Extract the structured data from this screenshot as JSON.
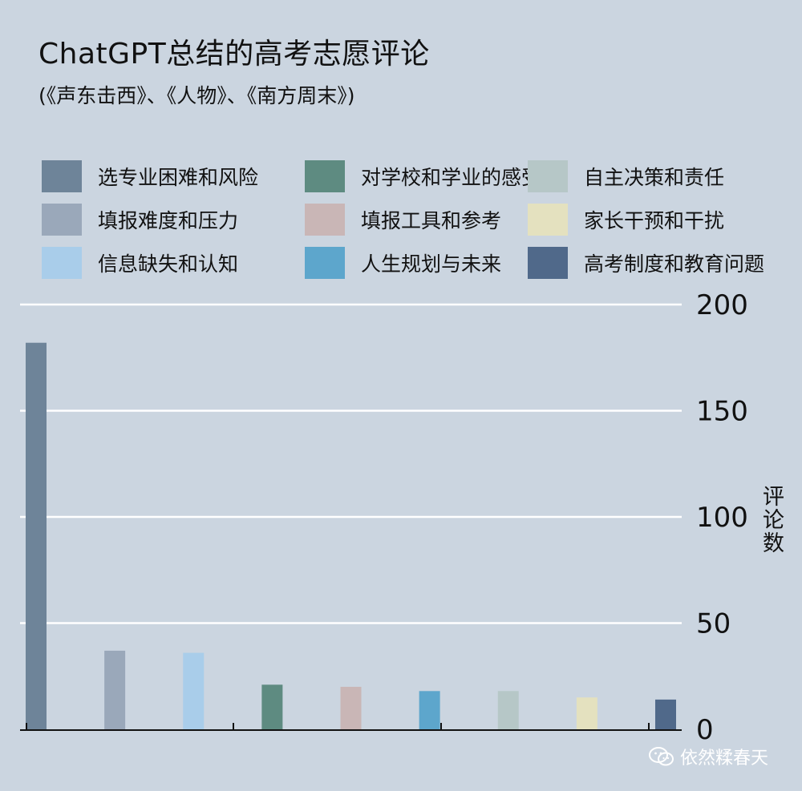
{
  "header": {
    "title": "ChatGPT总结的高考志愿评论",
    "subtitle": "(《声东击西》、《人物》、《南方周末》)"
  },
  "chart_data": {
    "type": "bar",
    "title": "ChatGPT总结的高考志愿评论",
    "subtitle": "(《声东击西》、《人物》、《南方周末》)",
    "ylabel": "评论数",
    "ylim": [
      0,
      200
    ],
    "yticks": [
      0,
      50,
      100,
      150,
      200
    ],
    "y_axis_position": "right",
    "grid": true,
    "legend_position": "top",
    "categories": [
      "选专业困难和风险",
      "填报难度和压力",
      "信息缺失和认知",
      "对学校和学业的感受",
      "填报工具和参考",
      "人生规划与未来",
      "自主决策和责任",
      "家长干预和干扰",
      "高考制度和教育问题"
    ],
    "values": [
      182,
      37,
      36,
      21,
      20,
      18,
      18,
      15,
      14
    ],
    "colors": [
      "#6e8499",
      "#9aa8ba",
      "#a9cdea",
      "#5e8b81",
      "#c9b6b6",
      "#5da6cc",
      "#b6c7c7",
      "#e4e1bf",
      "#50698a"
    ]
  },
  "watermark": {
    "text": "依然糅春天"
  }
}
